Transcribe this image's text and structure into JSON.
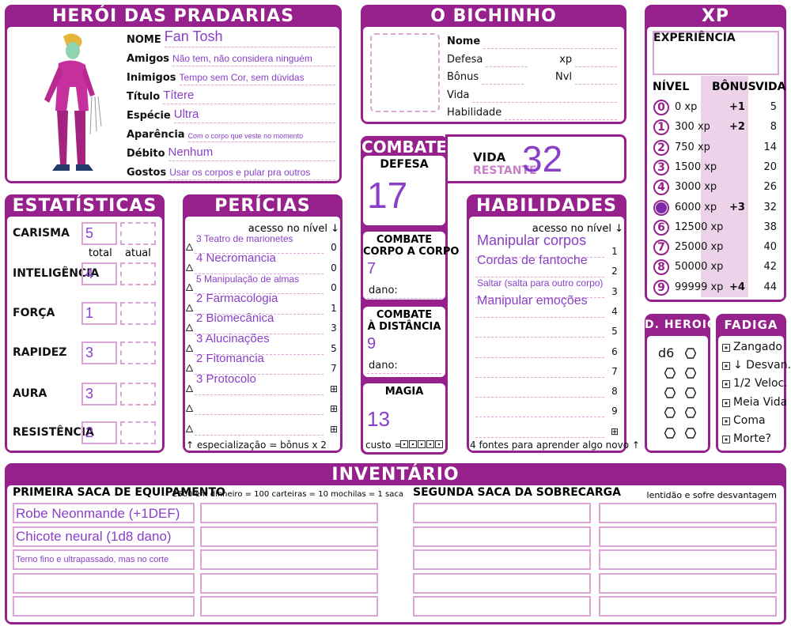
{
  "hero": {
    "title": "HERÓI DAS PRADARIAS",
    "fields": [
      {
        "label": "NOME",
        "value": "Fan Tosh"
      },
      {
        "label": "Amigos",
        "value": "Não tem, não considera ninguém"
      },
      {
        "label": "Inimigos",
        "value": "Tempo sem Cor, sem dúvidas"
      },
      {
        "label": "Título",
        "value": "Títere"
      },
      {
        "label": "Espécie",
        "value": "Ultra"
      },
      {
        "label": "Aparência",
        "value": "Com o corpo que veste no momento"
      },
      {
        "label": "Débito",
        "value": "Nenhum"
      },
      {
        "label": "Gostos",
        "value": "Usar os corpos e pular pra outros"
      }
    ]
  },
  "pet": {
    "title": "O BICHINHO",
    "fields": [
      "Nome",
      "Defesa",
      "Bônus",
      "Vida",
      "Habilidade"
    ],
    "side_fields": [
      "xp",
      "Nvl"
    ]
  },
  "xp": {
    "title": "XP",
    "experience_label": "EXPERIÊNCIA",
    "headers": [
      "NÍVEL",
      "BÔNUS",
      "VIDA"
    ],
    "rows": [
      {
        "level": 0,
        "xp": "0 xp",
        "bonus": "+1",
        "life": 5
      },
      {
        "level": 1,
        "xp": "300 xp",
        "bonus": "+2",
        "life": 8
      },
      {
        "level": 2,
        "xp": "750 xp",
        "bonus": null,
        "life": 14
      },
      {
        "level": 3,
        "xp": "1500 xp",
        "bonus": null,
        "life": 20
      },
      {
        "level": 4,
        "xp": "3000 xp",
        "bonus": null,
        "life": 26
      },
      {
        "level": null,
        "xp": "6000 xp",
        "bonus": "+3",
        "life": 32
      },
      {
        "level": 6,
        "xp": "12500 xp",
        "bonus": null,
        "life": 38
      },
      {
        "level": 7,
        "xp": "25000 xp",
        "bonus": null,
        "life": 40
      },
      {
        "level": 8,
        "xp": "50000 xp",
        "bonus": null,
        "life": 42
      },
      {
        "level": 9,
        "xp": "99999 xp",
        "bonus": "+4",
        "life": 44
      }
    ]
  },
  "combat": {
    "title": "COMBATE",
    "life_label": "VIDA",
    "life_sublabel": "RESTANTE",
    "life": 32,
    "defense_label": "DEFESA",
    "defense": 17,
    "melee_label": [
      "COMBATE",
      "CORPO A CORPO"
    ],
    "melee": 7,
    "ranged_label": [
      "COMBATE",
      "À DISTÂNCIA"
    ],
    "ranged": 9,
    "damage_label": "dano:",
    "magic_label": "MAGIA",
    "magic": 13,
    "cost_label": "custo ="
  },
  "stats": {
    "title": "ESTATÍSTICAS",
    "total_label": "total",
    "current_label": "atual",
    "rows": [
      {
        "name": "CARISMA",
        "total": 5
      },
      {
        "name": "INTELIGÊNCIA",
        "total": 4
      },
      {
        "name": "FORÇA",
        "total": 1
      },
      {
        "name": "RAPIDEZ",
        "total": 3
      },
      {
        "name": "AURA",
        "total": 3
      },
      {
        "name": "RESISTÊNCIA",
        "total": 2
      }
    ]
  },
  "skills": {
    "title": "PERÍCIAS",
    "level_header": "acesso no nível ↓",
    "rows": [
      {
        "skill": "3 Teatro de marionetes",
        "level": 0
      },
      {
        "skill": "4 Necromancia",
        "level": 0
      },
      {
        "skill": "5 Manipulação de almas",
        "level": 0
      },
      {
        "skill": "2 Farmacologia",
        "level": 1
      },
      {
        "skill": "2 Biomecânica",
        "level": 3
      },
      {
        "skill": "3 Alucinações",
        "level": 5
      },
      {
        "skill": "2 Fitomancia",
        "level": 7
      },
      {
        "skill": "3 Protocolo",
        "level": "⊞"
      },
      {
        "skill": null,
        "level": "⊞"
      },
      {
        "skill": null,
        "level": "⊞"
      }
    ],
    "footer": "↑ especialização  = bônus x 2"
  },
  "abilities": {
    "title": "HABILIDADES",
    "level_header": "acesso no nível ↓",
    "rows": [
      {
        "ability": "Manipular corpos",
        "level": 1
      },
      {
        "ability": "Cordas de fantoche",
        "level": 2
      },
      {
        "ability": "Saltar (salta para outro corpo)",
        "level": 3
      },
      {
        "ability": "Manipular emoções",
        "level": 4
      },
      {
        "ability": null,
        "level": 5
      },
      {
        "ability": null,
        "level": 6
      },
      {
        "ability": null,
        "level": 7
      },
      {
        "ability": null,
        "level": 8
      },
      {
        "ability": null,
        "level": 9
      },
      {
        "ability": null,
        "level": "⊞"
      }
    ],
    "footer": "4 fontes para aprender algo novo ↑"
  },
  "heroic": {
    "title": "D. HEROICOS",
    "die": "d6"
  },
  "fatigue": {
    "title": "FADIGA",
    "items": [
      "Zangado",
      "↓ Desvan.",
      "1/2 Veloc.",
      "Meia Vida",
      "Coma",
      "Morte?"
    ]
  },
  "inventory": {
    "title": "INVENTÁRIO",
    "first_title": "PRIMEIRA SACA DE EQUIPAMENTO",
    "first_note": "2500 em dinheiro = 100 carteiras = 10 mochilas = 1 saca",
    "second_title": "SEGUNDA SACA DA SOBRECARGA",
    "second_note": "lentidão e sofre desvantagem",
    "items": [
      "Robe Neonmande (+1DEF)",
      "Chicote neural (1d8 dano)",
      "Terno fino e ultrapassado, mas no corte"
    ]
  }
}
